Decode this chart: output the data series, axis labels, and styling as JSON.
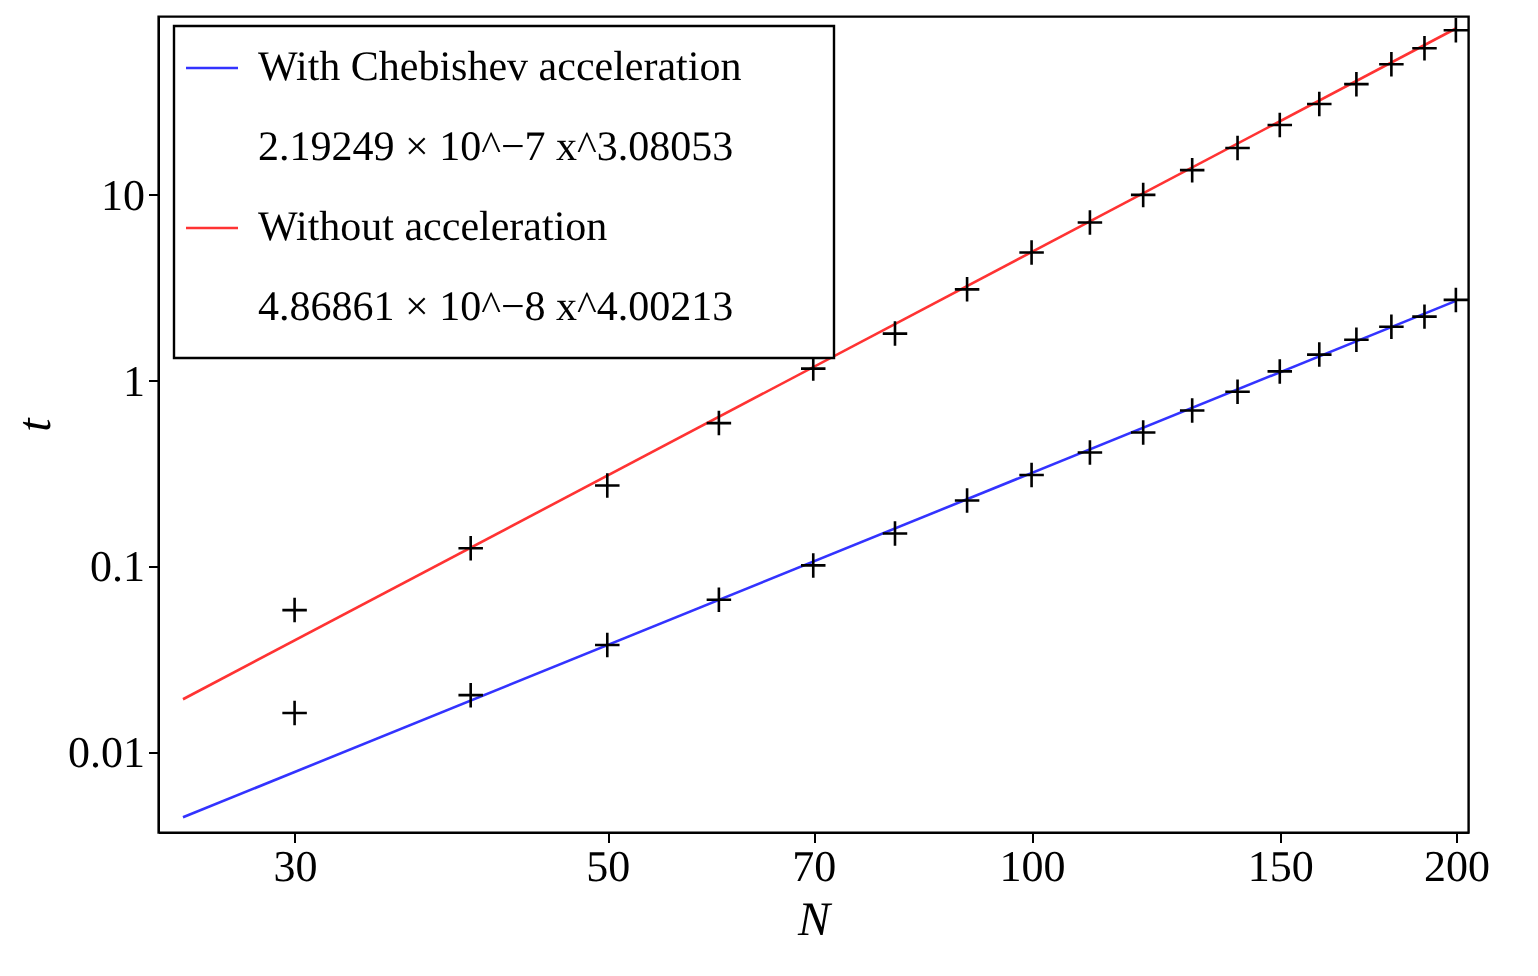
{
  "chart_data": {
    "type": "scatter",
    "xlabel": "N",
    "ylabel": "t",
    "log": "xy",
    "grid": false,
    "legend": "top left",
    "xlim": [
      24,
      204
    ],
    "ylim": [
      0.0037,
      92
    ],
    "xticks": [
      30,
      50,
      70,
      100,
      150,
      200
    ],
    "yticks": [
      0.01,
      0.1,
      1,
      10
    ],
    "annotations": [
      "2.19249 × 10^−7 x^3.08053",
      "4.86861 × 10^−8 x^4.00213"
    ],
    "series": [
      {
        "name": "With Chebishev acceleration",
        "type": "line",
        "line_style": "solid",
        "color": "#3333ff",
        "x": [
          25,
          200
        ],
        "values": [
          0.00444,
          2.687
        ]
      },
      {
        "name": "Without acceleration",
        "type": "line",
        "line_style": "solid",
        "color": "#ff3333",
        "x": [
          25,
          200
        ],
        "values": [
          0.0192,
          78.8
        ]
      },
      {
        "marker": "cross",
        "color": "#000000",
        "x": [
          30,
          40,
          50,
          60,
          70,
          80,
          90,
          100,
          110,
          120,
          130,
          140,
          150,
          160,
          170,
          180,
          190,
          200
        ],
        "values": [
          0.0162,
          0.0202,
          0.0376,
          0.066,
          0.101,
          0.15,
          0.226,
          0.31,
          0.41,
          0.525,
          0.69,
          0.87,
          1.12,
          1.38,
          1.66,
          1.95,
          2.21,
          2.72
        ]
      },
      {
        "marker": "cross",
        "color": "#000000",
        "x": [
          30,
          40,
          50,
          60,
          70,
          80,
          90,
          100,
          110,
          120,
          130,
          140,
          150,
          160,
          170,
          180,
          190,
          200
        ],
        "values": [
          0.058,
          0.125,
          0.272,
          0.59,
          1.16,
          1.79,
          3.1,
          4.9,
          7.1,
          10,
          13.6,
          17.9,
          23.8,
          30.9,
          39.5,
          50.6,
          61.7,
          77.1
        ]
      }
    ]
  }
}
